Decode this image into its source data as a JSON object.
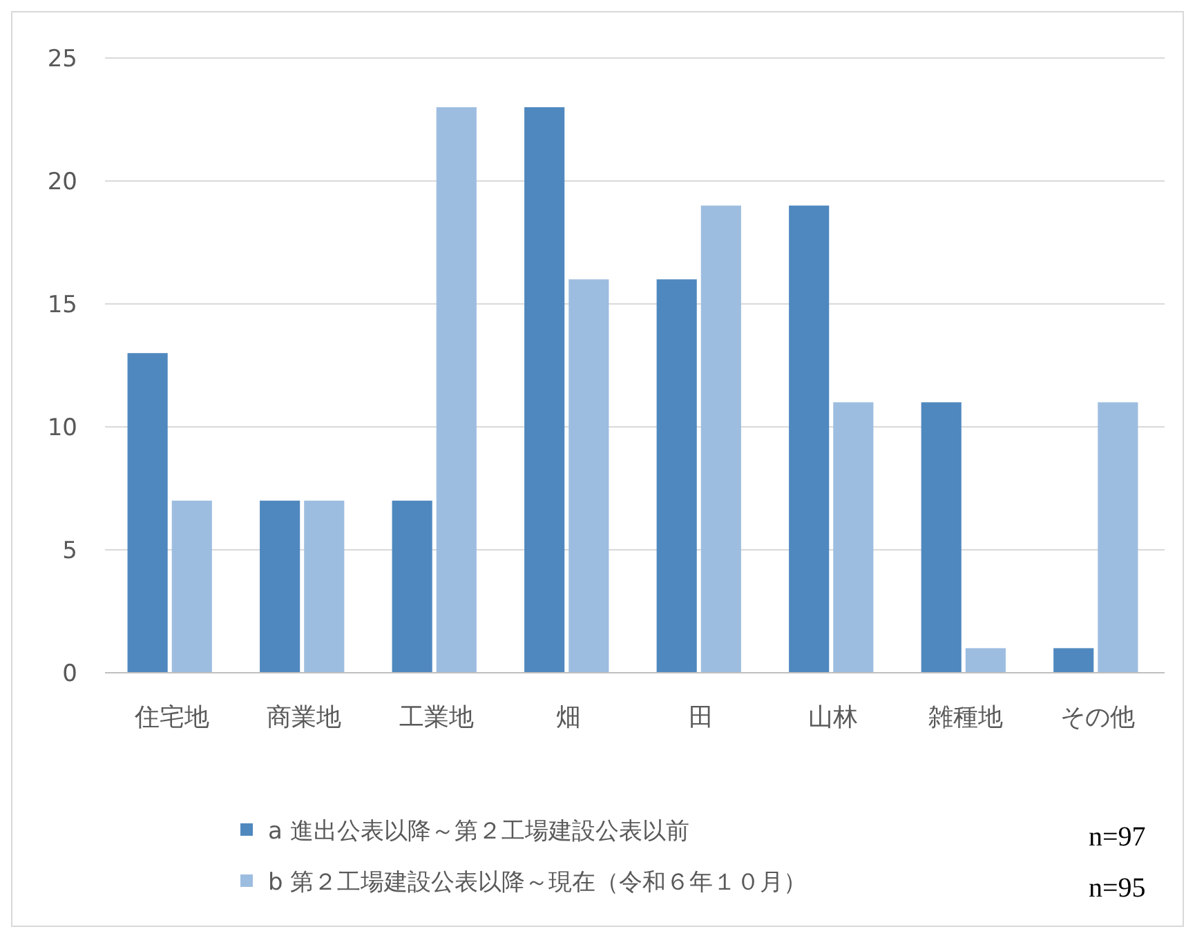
{
  "chart_data": {
    "type": "bar",
    "categories": [
      "住宅地",
      "商業地",
      "工業地",
      "畑",
      "田",
      "山林",
      "雑種地",
      "その他"
    ],
    "series": [
      {
        "name": "a 進出公表以降～第２工場建設公表以前",
        "color": "#4f88bf",
        "values": [
          13,
          7,
          7,
          23,
          16,
          19,
          11,
          1
        ]
      },
      {
        "name": "b 第２工場建設公表以降～現在（令和６年１０月）",
        "color": "#9dbde0",
        "values": [
          7,
          7,
          23,
          16,
          19,
          11,
          1,
          11
        ]
      }
    ],
    "ylim": [
      0,
      25
    ],
    "yticks": [
      0,
      5,
      10,
      15,
      20,
      25
    ],
    "grid": "y",
    "legend": "bottom",
    "annotations": [
      "n=97",
      "n=95"
    ]
  }
}
